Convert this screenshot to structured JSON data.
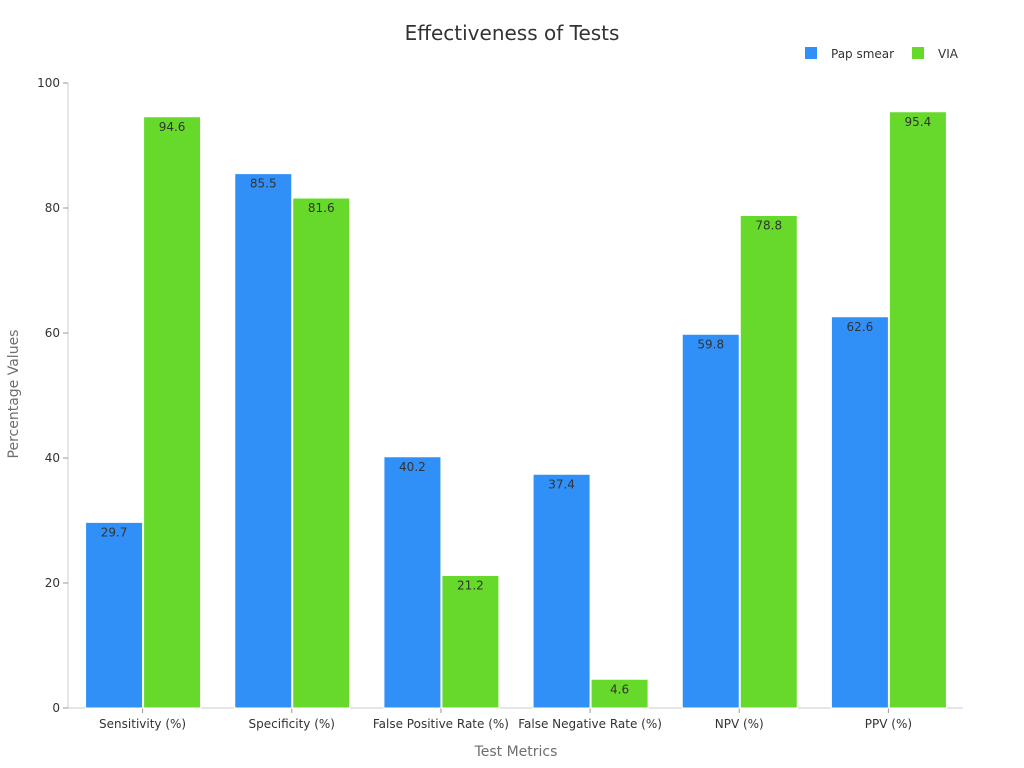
{
  "chart_data": {
    "type": "bar",
    "title": "Effectiveness of Tests",
    "xlabel": "Test Metrics",
    "ylabel": "Percentage Values",
    "categories": [
      "Sensitivity (%)",
      "Specificity (%)",
      "False Positive Rate (%)",
      "False Negative Rate (%)",
      "NPV (%)",
      "PPV (%)"
    ],
    "series": [
      {
        "name": "Pap smear",
        "color": "#3090f8",
        "values": [
          29.7,
          85.5,
          40.2,
          37.4,
          59.8,
          62.6
        ]
      },
      {
        "name": "VIA",
        "color": "#66d92a",
        "values": [
          94.6,
          81.6,
          21.2,
          4.6,
          78.8,
          95.4
        ]
      }
    ],
    "ylim": [
      0,
      100
    ],
    "yticks": [
      0,
      20,
      40,
      60,
      80,
      100
    ],
    "grid": false,
    "legend_position": "top-right"
  }
}
